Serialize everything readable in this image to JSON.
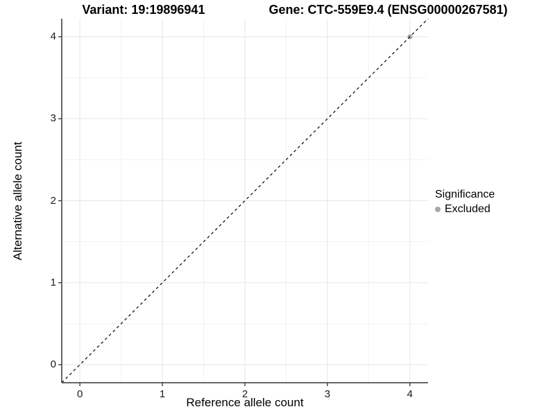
{
  "header": {
    "variant_title": "Variant: 19:19896941",
    "gene_title": "Gene: CTC-559E9.4 (ENSG00000267581)"
  },
  "axes": {
    "x_title": "Reference allele count",
    "y_title": "Alternative allele count"
  },
  "legend": {
    "title": "Significance",
    "items": [
      {
        "label": "Excluded",
        "color": "#a6a6a6",
        "marker": "point-icon"
      }
    ]
  },
  "chart_data": {
    "type": "scatter",
    "title": "Variant: 19:19896941 | Gene: CTC-559E9.4 (ENSG00000267581)",
    "xlabel": "Reference allele count",
    "ylabel": "Alternative allele count",
    "xlim": [
      -0.22,
      4.22
    ],
    "ylim": [
      -0.22,
      4.22
    ],
    "x_ticks": [
      0,
      1,
      2,
      3,
      4
    ],
    "y_ticks": [
      0,
      1,
      2,
      3,
      4
    ],
    "x_minor_ticks": [
      0.5,
      1.5,
      2.5,
      3.5
    ],
    "y_minor_ticks": [
      0.5,
      1.5,
      2.5,
      3.5
    ],
    "grid": "major and minor gridlines on white panel",
    "legend_position": "right-middle",
    "series": [
      {
        "name": "Excluded",
        "marker": "circle",
        "marker_radius": 3.5,
        "color": "#a6a6a6",
        "points": [
          [
            4,
            4
          ]
        ]
      }
    ],
    "reference_line": {
      "slope": 1,
      "intercept": 0,
      "style": "dashed",
      "color": "#000000"
    },
    "colors": {
      "background": "#ffffff",
      "grid_major": "#e5e5e5",
      "grid_minor": "#f2f2f2",
      "axis_line": "#333333",
      "tick_mark": "#333333",
      "text": "#000000"
    }
  }
}
